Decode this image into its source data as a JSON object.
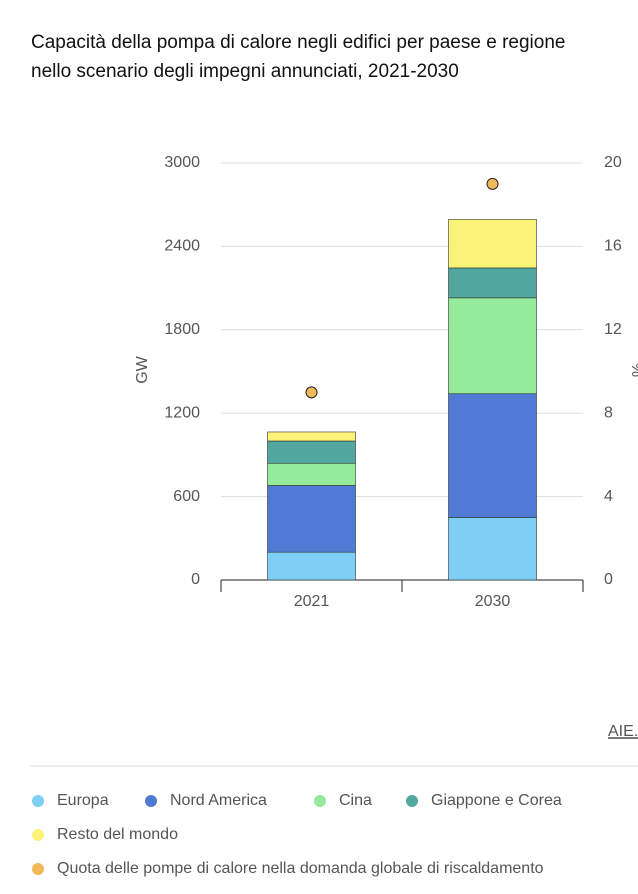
{
  "chart_data": {
    "type": "bar",
    "stacked": true,
    "title": "Capacità della pompa di calore negli edifici per paese e regione nello scenario degli impegni annunciati, 2021-2030",
    "y_label": "GW",
    "y2_label": "%",
    "source": "AIE.",
    "categories": [
      "2021",
      "2030"
    ],
    "series": [
      {
        "name": "Europa",
        "color": "#7dcff5",
        "values": [
          200,
          450
        ]
      },
      {
        "name": "Nord America",
        "color": "#4f7bd4",
        "values": [
          480,
          890
        ]
      },
      {
        "name": "Cina",
        "color": "#93eb9b",
        "values": [
          160,
          690
        ]
      },
      {
        "name": "Giappone e Corea",
        "color": "#52a89f",
        "values": [
          160,
          215
        ]
      },
      {
        "name": "Resto del mondo",
        "color": "#fbf27a",
        "values": [
          65,
          350
        ]
      },
      {
        "name": "Quota delle pompe di calore nella domanda globale di riscaldamento",
        "color": "#f0b95a",
        "values": [
          9,
          19
        ],
        "axis": "y2"
      }
    ],
    "ylim": [
      0,
      3000
    ],
    "yticks": [
      0,
      600,
      1200,
      1800,
      2400,
      3000
    ],
    "y2lim": [
      0,
      20
    ],
    "y2ticks": [
      0,
      4,
      8,
      12,
      16,
      20
    ],
    "grid": true
  }
}
